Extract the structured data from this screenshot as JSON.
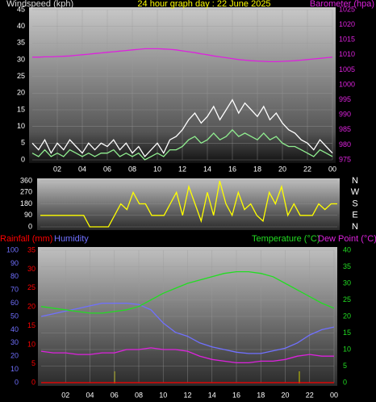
{
  "chart_data": [
    {
      "type": "line",
      "title": "24 hour graph day : 22 June 2025",
      "ylabel": "Windspeed (kph)",
      "y2label": "Barometer (hpa)",
      "x": [
        0,
        0.5,
        1,
        1.5,
        2,
        2.5,
        3,
        3.5,
        4,
        4.5,
        5,
        5.5,
        6,
        6.5,
        7,
        7.5,
        8,
        8.5,
        9,
        9.5,
        10,
        10.5,
        11,
        11.5,
        12,
        12.5,
        13,
        13.5,
        14,
        14.5,
        15,
        15.5,
        16,
        16.5,
        17,
        17.5,
        18,
        18.5,
        19,
        19.5,
        20,
        20.5,
        21,
        21.5,
        22,
        22.5,
        23,
        23.5,
        24
      ],
      "xlim": [
        0,
        24
      ],
      "xticks": [
        {
          "value": 2,
          "label": "02"
        },
        {
          "value": 4,
          "label": "04"
        },
        {
          "value": 6,
          "label": "06"
        },
        {
          "value": 8,
          "label": "08"
        },
        10,
        12,
        14,
        16,
        18,
        20,
        22,
        {
          "value": 24,
          "label": "00"
        }
      ],
      "ylim": [
        0,
        45
      ],
      "yticks": [
        0,
        5,
        10,
        15,
        20,
        25,
        30,
        35,
        40,
        45
      ],
      "y2lim": [
        975,
        1025
      ],
      "y2ticks": [
        975,
        980,
        985,
        990,
        995,
        1000,
        1005,
        1010,
        1015,
        1020,
        1025
      ],
      "grid": true,
      "series": [
        {
          "color": "#ffffff",
          "values": [
            5,
            3,
            6,
            2,
            5,
            3,
            6,
            4,
            2,
            5,
            3,
            5,
            4,
            6,
            3,
            5,
            2,
            4,
            1,
            3,
            5,
            2,
            6,
            7,
            9,
            12,
            14,
            11,
            13,
            16,
            12,
            15,
            18,
            14,
            17,
            15,
            13,
            16,
            12,
            14,
            11,
            9,
            8,
            6,
            5,
            3,
            6,
            4,
            2
          ]
        },
        {
          "color": "#90ee90",
          "values": [
            2,
            1,
            3,
            1,
            2,
            1,
            3,
            2,
            1,
            2,
            1,
            2,
            2,
            3,
            1,
            2,
            1,
            2,
            0,
            1,
            2,
            1,
            3,
            3,
            4,
            6,
            7,
            5,
            6,
            8,
            6,
            7,
            9,
            7,
            8,
            7,
            6,
            8,
            6,
            7,
            5,
            4,
            4,
            3,
            2,
            1,
            3,
            2,
            1
          ]
        },
        {
          "color": "#dd22dd",
          "axis": "y2",
          "values": [
            1009.2,
            1009.2,
            1009.3,
            1009.3,
            1009.4,
            1009.5,
            1009.6,
            1009.8,
            1010,
            1010.2,
            1010.4,
            1010.6,
            1010.8,
            1011,
            1011.2,
            1011.4,
            1011.6,
            1011.8,
            1012,
            1012,
            1012,
            1011.9,
            1011.8,
            1011.6,
            1011.3,
            1011,
            1010.7,
            1010.3,
            1010,
            1009.6,
            1009.3,
            1009,
            1008.7,
            1008.4,
            1008.2,
            1008,
            1007.9,
            1007.8,
            1007.7,
            1007.7,
            1007.8,
            1007.9,
            1008,
            1008.2,
            1008.4,
            1008.6,
            1008.8,
            1009,
            1009.2
          ]
        }
      ]
    },
    {
      "type": "line",
      "x": [
        0,
        0.5,
        1,
        1.5,
        2,
        2.5,
        3,
        3.5,
        4,
        4.5,
        5,
        5.5,
        6,
        6.5,
        7,
        7.5,
        8,
        8.5,
        9,
        9.5,
        10,
        10.5,
        11,
        11.5,
        12,
        12.5,
        13,
        13.5,
        14,
        14.5,
        15,
        15.5,
        16,
        16.5,
        17,
        17.5,
        18,
        18.5,
        19,
        19.5,
        20,
        20.5,
        21,
        21.5,
        22,
        22.5,
        23,
        23.5,
        24
      ],
      "xlim": [
        0,
        24
      ],
      "ylim": [
        0,
        360
      ],
      "yticks": [
        0,
        90,
        180,
        270,
        360
      ],
      "y2lim": [
        0,
        360
      ],
      "y2ticks": [
        {
          "value": 0,
          "label": "N"
        },
        {
          "value": 90,
          "label": "E"
        },
        {
          "value": 180,
          "label": "S"
        },
        {
          "value": 270,
          "label": "W"
        },
        {
          "value": 360,
          "label": "N"
        }
      ],
      "grid": true,
      "series": [
        {
          "color": "#ffff00",
          "values": [
            90,
            90,
            90,
            90,
            90,
            90,
            90,
            90,
            0,
            0,
            0,
            0,
            90,
            180,
            135,
            270,
            180,
            180,
            90,
            90,
            90,
            180,
            270,
            90,
            315,
            180,
            45,
            270,
            90,
            360,
            180,
            90,
            270,
            135,
            180,
            90,
            45,
            270,
            180,
            315,
            90,
            180,
            90,
            90,
            90,
            180,
            135,
            180,
            180
          ]
        }
      ]
    },
    {
      "type": "line",
      "x": [
        0,
        1,
        2,
        3,
        4,
        5,
        6,
        7,
        8,
        9,
        10,
        11,
        12,
        13,
        14,
        15,
        16,
        17,
        18,
        19,
        20,
        21,
        22,
        23,
        24
      ],
      "xlim": [
        0,
        24
      ],
      "xticks": [
        {
          "value": 2,
          "label": "02"
        },
        {
          "value": 4,
          "label": "04"
        },
        {
          "value": 6,
          "label": "06"
        },
        {
          "value": 8,
          "label": "08"
        },
        10,
        12,
        14,
        16,
        18,
        20,
        22,
        {
          "value": 24,
          "label": "00"
        }
      ],
      "ylim": [
        0,
        100
      ],
      "yticks": [
        0,
        10,
        20,
        30,
        40,
        50,
        60,
        70,
        80,
        90,
        100
      ],
      "y2lim": [
        0,
        40
      ],
      "y2ticks": [
        0,
        5,
        10,
        15,
        20,
        25,
        30,
        35,
        40
      ],
      "y3lim": [
        0,
        35
      ],
      "y3ticks": [
        0,
        5,
        10,
        15,
        20,
        25,
        30,
        35
      ],
      "grid": true,
      "series": [
        {
          "name": "Rainfall (mm)",
          "color": "#ff0000",
          "axis": "y3",
          "values": [
            0,
            0,
            0,
            0,
            0,
            0,
            0,
            0,
            0,
            0,
            0,
            0,
            0,
            0,
            0,
            0,
            0,
            0,
            0,
            0,
            0,
            0,
            0,
            0,
            0
          ]
        },
        {
          "name": "Humidity",
          "color": "#7070ff",
          "values": [
            50,
            52,
            54,
            56,
            58,
            60,
            60,
            60,
            59,
            55,
            45,
            38,
            35,
            30,
            27,
            25,
            23,
            22,
            22,
            24,
            26,
            30,
            36,
            40,
            42
          ]
        },
        {
          "name": "Temperature (°C)",
          "color": "#22dd22",
          "axis": "y2",
          "values": [
            23,
            22.5,
            22,
            21.5,
            21,
            21,
            21.5,
            22,
            23,
            25,
            27,
            28.5,
            30,
            31,
            32,
            33,
            33.5,
            33.5,
            33,
            32,
            30,
            28,
            26,
            24,
            22.5
          ]
        },
        {
          "name": "Dew Point (°C)",
          "color": "#dd22dd",
          "axis": "y2",
          "values": [
            9.5,
            9,
            9,
            8.5,
            8.5,
            9,
            9,
            10,
            10,
            10.5,
            10,
            10,
            9.5,
            8,
            7,
            6.5,
            6,
            6,
            6.5,
            6.5,
            7,
            8,
            8.5,
            8,
            8
          ]
        }
      ]
    }
  ]
}
